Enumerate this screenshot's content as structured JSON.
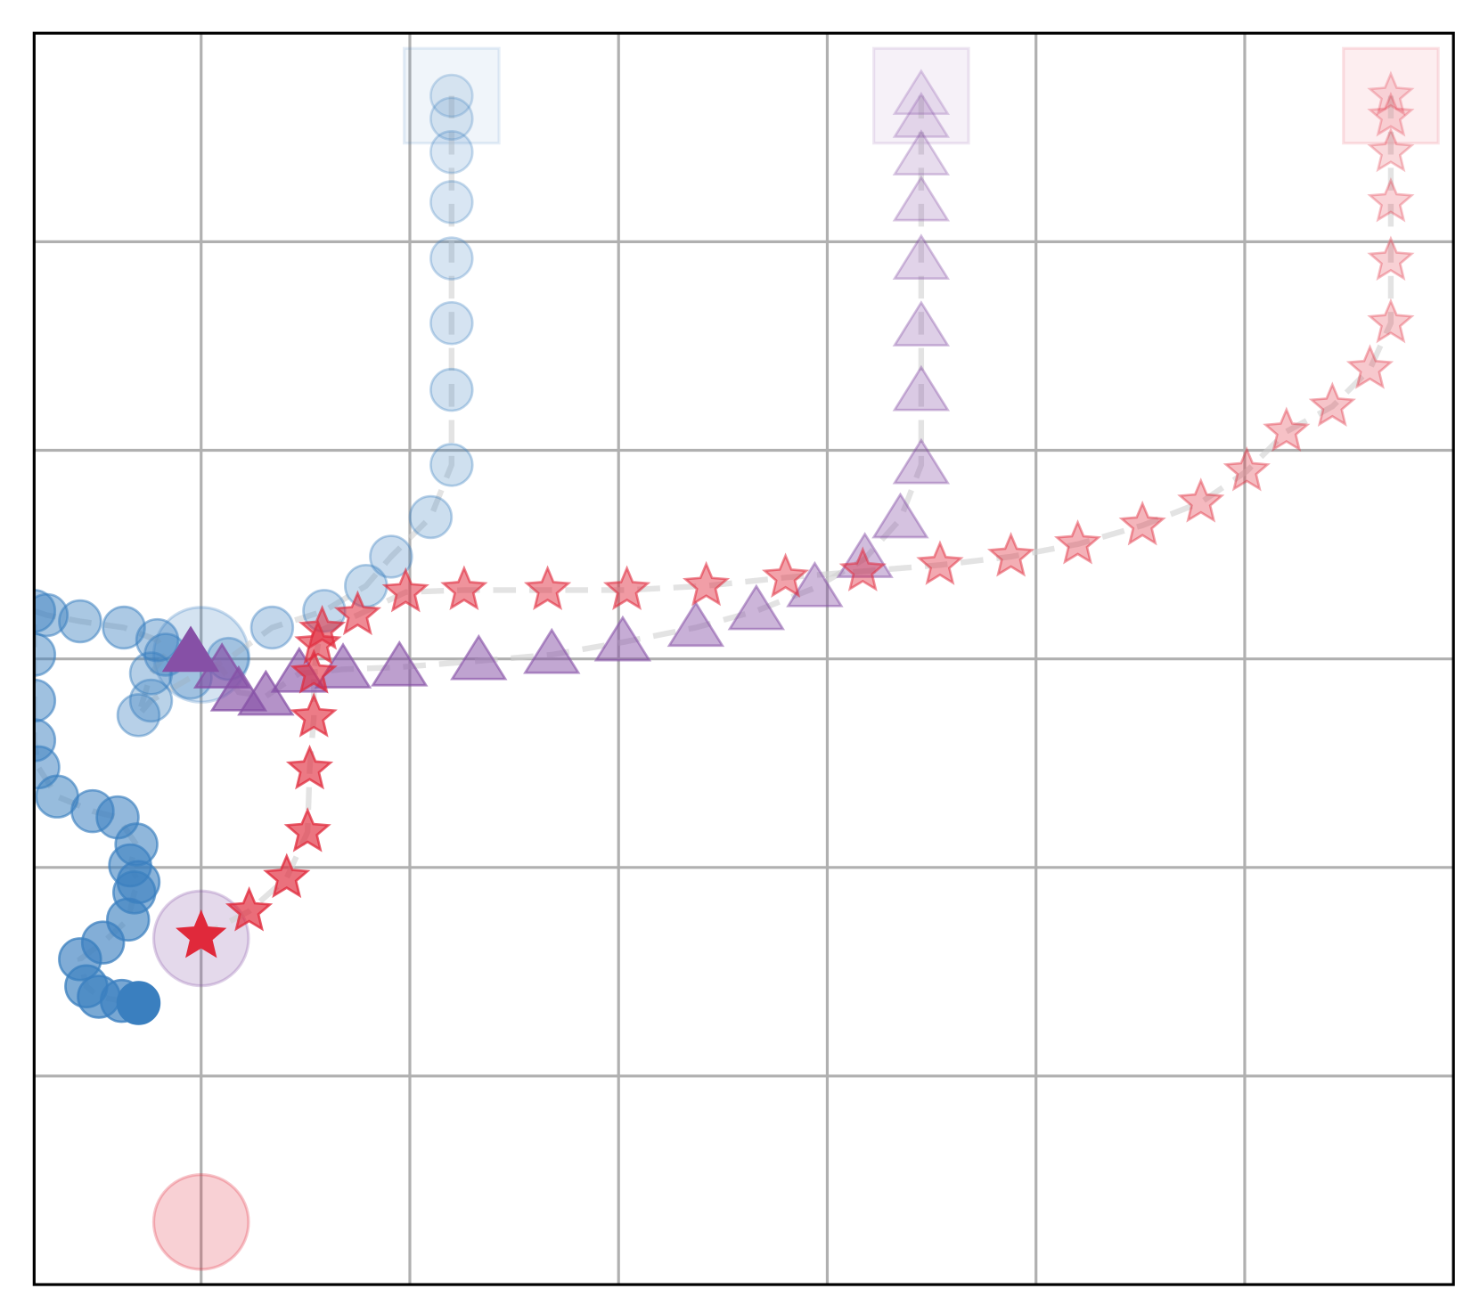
{
  "chart_data": {
    "type": "scatter",
    "xlim": [
      -0.8,
      6
    ],
    "ylim": [
      -3,
      3
    ],
    "xticks": [
      0,
      1,
      2,
      3,
      4,
      5
    ],
    "yticks": [
      -2,
      -1,
      0,
      1,
      2
    ],
    "grid": true,
    "series": [
      {
        "color": "#3a7fbf",
        "marker": "circle",
        "trail": true,
        "x": [
          1.2,
          1.2,
          1.2,
          1.2,
          1.2,
          1.2,
          1.2,
          1.2,
          1.1,
          0.91,
          0.79,
          0.59,
          0.34,
          0.13,
          -0.05,
          -0.24,
          -0.3,
          -0.24,
          -0.17,
          -0.21,
          -0.37,
          -0.58,
          -0.74,
          -0.8,
          -0.8,
          -0.8,
          -0.8,
          -0.78,
          -0.69,
          -0.52,
          -0.4,
          -0.31,
          -0.34,
          -0.3,
          -0.32,
          -0.35,
          -0.47,
          -0.58,
          -0.55,
          -0.49,
          -0.38,
          -0.3
        ],
        "y": [
          2.7,
          2.59,
          2.43,
          2.19,
          1.92,
          1.61,
          1.29,
          0.93,
          0.68,
          0.49,
          0.35,
          0.23,
          0.15,
          0,
          -0.09,
          -0.2,
          -0.27,
          -0.07,
          0.02,
          0.09,
          0.15,
          0.18,
          0.21,
          0.23,
          0.02,
          -0.2,
          -0.39,
          -0.52,
          -0.66,
          -0.73,
          -0.76,
          -0.89,
          -0.99,
          -1.07,
          -1.12,
          -1.25,
          -1.36,
          -1.44,
          -1.57,
          -1.62,
          -1.64,
          -1.65
        ]
      },
      {
        "color": "#8650a6",
        "marker": "triangle",
        "trail": true,
        "x": [
          3.45,
          3.45,
          3.45,
          3.45,
          3.45,
          3.45,
          3.45,
          3.45,
          3.35,
          3.18,
          2.94,
          2.66,
          2.37,
          2.02,
          1.68,
          1.33,
          0.95,
          0.68,
          0.47,
          0.31,
          0.18,
          0.1,
          -0.05
        ],
        "y": [
          2.7,
          2.59,
          2.41,
          2.19,
          1.91,
          1.59,
          1.28,
          0.93,
          0.67,
          0.48,
          0.34,
          0.23,
          0.15,
          0.08,
          0.02,
          -0.01,
          -0.04,
          -0.05,
          -0.07,
          -0.18,
          -0.16,
          -0.05,
          0.03
        ]
      },
      {
        "color": "#e0293b",
        "marker": "star",
        "trail": true,
        "x": [
          5.7,
          5.7,
          5.7,
          5.7,
          5.7,
          5.7,
          5.6,
          5.42,
          5.2,
          5.01,
          4.79,
          4.51,
          4.2,
          3.88,
          3.54,
          3.17,
          2.8,
          2.42,
          2.04,
          1.66,
          1.26,
          0.98,
          0.75,
          0.58,
          0.56,
          0.54,
          0.54,
          0.52,
          0.51,
          0.41,
          0.23,
          0
        ],
        "y": [
          2.7,
          2.6,
          2.43,
          2.19,
          1.91,
          1.61,
          1.39,
          1.21,
          1.09,
          0.9,
          0.75,
          0.64,
          0.55,
          0.49,
          0.45,
          0.42,
          0.39,
          0.35,
          0.33,
          0.33,
          0.33,
          0.32,
          0.21,
          0.14,
          0.07,
          -0.07,
          -0.28,
          -0.53,
          -0.83,
          -1.05,
          -1.21,
          -1.33
        ]
      },
      {
        "color": "#3a7fbf",
        "marker": "square",
        "x": [
          1.2
        ],
        "y": [
          2.7
        ]
      },
      {
        "color": "#8650a6",
        "marker": "square",
        "x": [
          3.45
        ],
        "y": [
          2.7
        ]
      },
      {
        "color": "#e0293b",
        "marker": "square",
        "x": [
          5.7
        ],
        "y": [
          2.7
        ]
      },
      {
        "color": "#3a7fbf",
        "marker": "disc",
        "x": [
          0
        ],
        "y": [
          0.02
        ]
      },
      {
        "color": "#8650a6",
        "marker": "disc",
        "x": [
          0
        ],
        "y": [
          -1.34
        ]
      },
      {
        "color": "#e0293b",
        "marker": "disc",
        "x": [
          0
        ],
        "y": [
          -2.7
        ]
      }
    ]
  }
}
